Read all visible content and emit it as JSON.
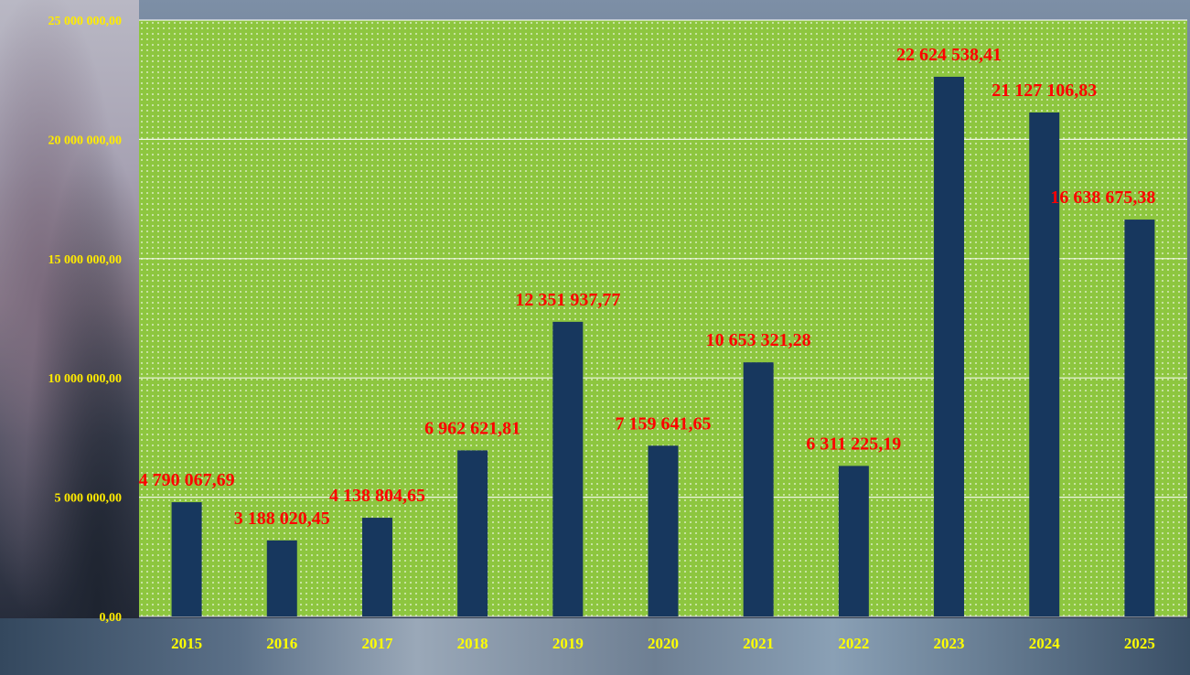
{
  "chart_data": {
    "type": "bar",
    "categories": [
      "2015",
      "2016",
      "2017",
      "2018",
      "2019",
      "2020",
      "2021",
      "2022",
      "2023",
      "2024",
      "2025"
    ],
    "values": [
      4790067.69,
      3188020.45,
      4138804.65,
      6962621.81,
      12351937.77,
      7159641.65,
      10653321.28,
      6311225.19,
      22624538.41,
      21127106.83,
      16638675.38
    ],
    "data_labels": [
      "4 790 067,69",
      "3 188 020,45",
      "4 138 804,65",
      "6 962 621,81",
      "12 351 937,77",
      "7 159 641,65",
      "10 653 321,28",
      "6 311 225,19",
      "22 624 538,41",
      "21 127 106,83",
      "16 638 675,38"
    ],
    "y_ticks": [
      0,
      5000000,
      10000000,
      15000000,
      20000000,
      25000000
    ],
    "y_tick_labels": [
      "0,00",
      "5 000 000,00",
      "10 000 000,00",
      "15 000 000,00",
      "20 000 000,00",
      "25 000 000,00"
    ],
    "ylim": [
      0,
      25000000
    ],
    "title": "",
    "xlabel": "",
    "ylabel": "",
    "grid": true,
    "legend": "none",
    "colors": {
      "bar": "#17375e",
      "plot_background": "#8dc63f",
      "gridline": "#ffffff",
      "data_label": "#ff0000",
      "tick_label": "#ffff00"
    }
  }
}
